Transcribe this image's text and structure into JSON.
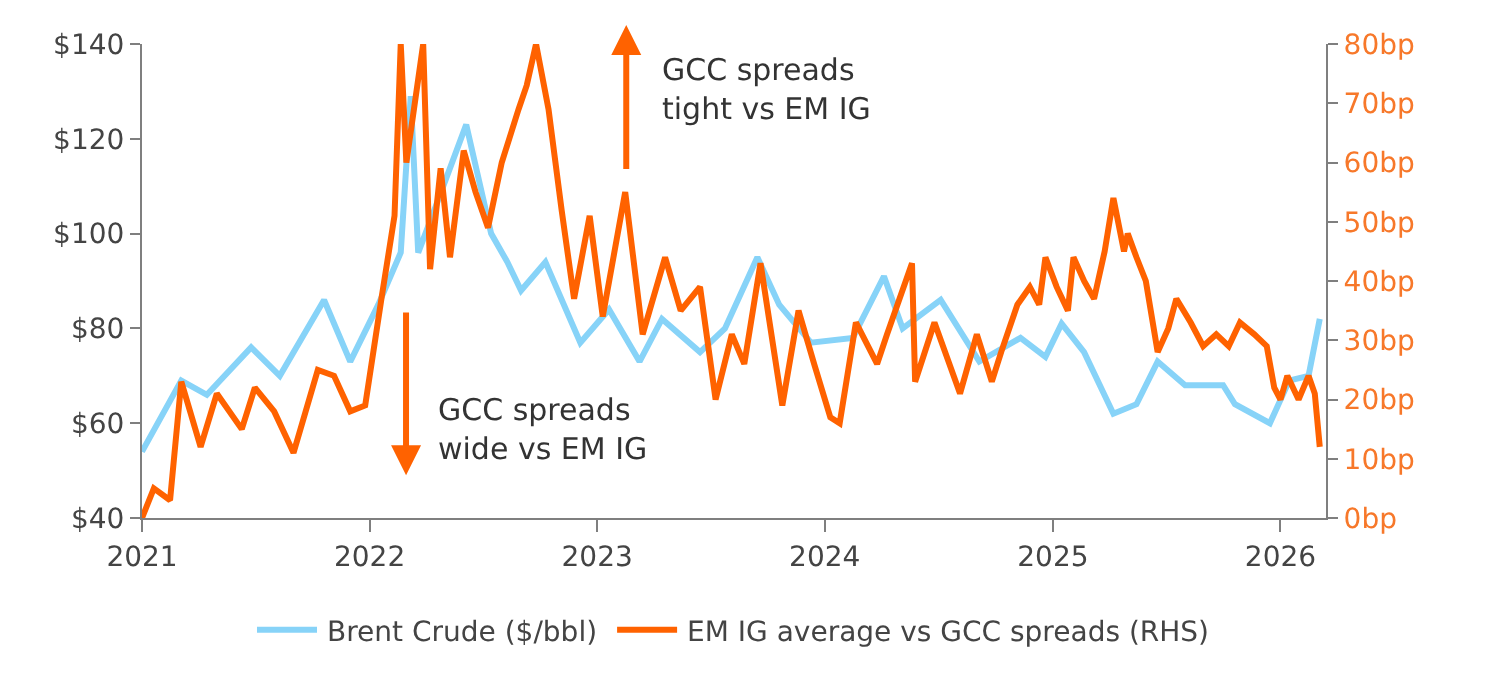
{
  "chart_data": {
    "type": "line",
    "series": [
      {
        "name": "Brent Crude ($/bbl)",
        "color": "#87d3f8",
        "axis": "y",
        "x": [
          "2021-01-01",
          "2021-03-05",
          "2021-04-15",
          "2021-06-25",
          "2021-08-10",
          "2021-10-20",
          "2021-12-01",
          "2022-01-15",
          "2022-02-20",
          "2022-03-08",
          "2022-03-20",
          "2022-04-15",
          "2022-06-05",
          "2022-07-15",
          "2022-08-10",
          "2022-09-01",
          "2022-10-10",
          "2022-12-05",
          "2023-01-20",
          "2023-03-10",
          "2023-04-15",
          "2023-06-15",
          "2023-07-25",
          "2023-09-15",
          "2023-10-20",
          "2023-12-10",
          "2024-02-15",
          "2024-04-05",
          "2024-05-05",
          "2024-07-05",
          "2024-09-05",
          "2024-11-10",
          "2024-12-20",
          "2025-01-15",
          "2025-02-20",
          "2025-04-08",
          "2025-05-15",
          "2025-06-18",
          "2025-08-01",
          "2025-10-01",
          "2025-10-20",
          "2025-12-15",
          "2026-01-15",
          "2026-02-15",
          "2026-03-05"
        ],
        "values": [
          54,
          69,
          66,
          76,
          70,
          86,
          73,
          85,
          96,
          129,
          96,
          105,
          123,
          100,
          94,
          88,
          94,
          77,
          84,
          73,
          82,
          75,
          80,
          95,
          85,
          77,
          78,
          91,
          80,
          86,
          73,
          78,
          74,
          81,
          75,
          62,
          64,
          73,
          68,
          68,
          64,
          60,
          69,
          70,
          82
        ]
      },
      {
        "name": "EM IG average vs GCC spreads (RHS)",
        "color": "#ff6200",
        "axis": "y2",
        "x": [
          "2021-01-01",
          "2021-01-20",
          "2021-02-15",
          "2021-03-05",
          "2021-04-05",
          "2021-05-01",
          "2021-06-10",
          "2021-07-01",
          "2021-08-01",
          "2021-09-01",
          "2021-10-10",
          "2021-11-05",
          "2021-12-01",
          "2021-12-25",
          "2022-01-20",
          "2022-02-10",
          "2022-02-20",
          "2022-03-01",
          "2022-03-28",
          "2022-04-08",
          "2022-04-25",
          "2022-05-10",
          "2022-06-01",
          "2022-06-20",
          "2022-07-10",
          "2022-08-01",
          "2022-08-28",
          "2022-09-10",
          "2022-09-25",
          "2022-10-15",
          "2022-11-05",
          "2022-11-25",
          "2022-12-20",
          "2023-01-10",
          "2023-02-15",
          "2023-03-15",
          "2023-04-20",
          "2023-05-15",
          "2023-06-15",
          "2023-07-10",
          "2023-08-05",
          "2023-08-25",
          "2023-09-20",
          "2023-10-25",
          "2023-11-20",
          "2023-12-15",
          "2024-01-10",
          "2024-01-25",
          "2024-02-20",
          "2024-03-25",
          "2024-04-10",
          "2024-05-20",
          "2024-05-25",
          "2024-06-25",
          "2024-08-05",
          "2024-09-01",
          "2024-09-25",
          "2024-10-10",
          "2024-11-05",
          "2024-11-25",
          "2024-12-10",
          "2024-12-20",
          "2025-01-07",
          "2025-01-25",
          "2025-02-03",
          "2025-02-20",
          "2025-03-08",
          "2025-03-25",
          "2025-04-08",
          "2025-04-25",
          "2025-05-01",
          "2025-05-15",
          "2025-05-30",
          "2025-06-18",
          "2025-07-05",
          "2025-07-18",
          "2025-08-10",
          "2025-08-30",
          "2025-09-20",
          "2025-10-10",
          "2025-10-28",
          "2025-11-20",
          "2025-12-10",
          "2025-12-22",
          "2026-01-01",
          "2026-01-12",
          "2026-01-30",
          "2026-02-15",
          "2026-02-25",
          "2026-03-05"
        ],
        "values": [
          0,
          5,
          3,
          23,
          12,
          21,
          15,
          22,
          18,
          11,
          25,
          24,
          18,
          19,
          37,
          51,
          80,
          60,
          80,
          42,
          59,
          44,
          62,
          55,
          49,
          60,
          69,
          73,
          80,
          69,
          52,
          37,
          51,
          34,
          55,
          31,
          44,
          35,
          39,
          20,
          31,
          26,
          43,
          19,
          35,
          26,
          17,
          16,
          33,
          26,
          31,
          43,
          23,
          33,
          21,
          31,
          23,
          28,
          36,
          39,
          36,
          44,
          39,
          35,
          44,
          40,
          37,
          45,
          54,
          45,
          48,
          44,
          40,
          28,
          32,
          37,
          33,
          29,
          31,
          29,
          33,
          31,
          29,
          22,
          20,
          24,
          20,
          24,
          21,
          12
        ]
      }
    ],
    "xlim": [
      "2021-01-01",
      "2026-03-15"
    ],
    "xticks": [
      {
        "value": "2021-01-01",
        "label": "2021"
      },
      {
        "value": "2022-01-01",
        "label": "2022"
      },
      {
        "value": "2023-01-01",
        "label": "2023"
      },
      {
        "value": "2024-01-01",
        "label": "2024"
      },
      {
        "value": "2025-01-01",
        "label": "2025"
      },
      {
        "value": "2026-01-01",
        "label": "2026"
      }
    ],
    "ylim": [
      40,
      140
    ],
    "yticks": [
      {
        "value": 40,
        "label": "$40"
      },
      {
        "value": 60,
        "label": "$60"
      },
      {
        "value": 80,
        "label": "$80"
      },
      {
        "value": 100,
        "label": "$100"
      },
      {
        "value": 120,
        "label": "$120"
      },
      {
        "value": 140,
        "label": "$140"
      }
    ],
    "y2lim": [
      0,
      80
    ],
    "y2ticks": [
      {
        "value": 0,
        "label": "0bp"
      },
      {
        "value": 10,
        "label": "10bp"
      },
      {
        "value": 20,
        "label": "20bp"
      },
      {
        "value": 30,
        "label": "30bp"
      },
      {
        "value": 40,
        "label": "40bp"
      },
      {
        "value": 50,
        "label": "50bp"
      },
      {
        "value": 60,
        "label": "60bp"
      },
      {
        "value": 70,
        "label": "70bp"
      },
      {
        "value": 80,
        "label": "80bp"
      }
    ],
    "annotations": [
      "GCC spreads\ntight vs EM IG",
      "GCC spreads\nwide vs EM IG"
    ],
    "legend": "bottom",
    "marker": "none",
    "line_style": "solid"
  }
}
